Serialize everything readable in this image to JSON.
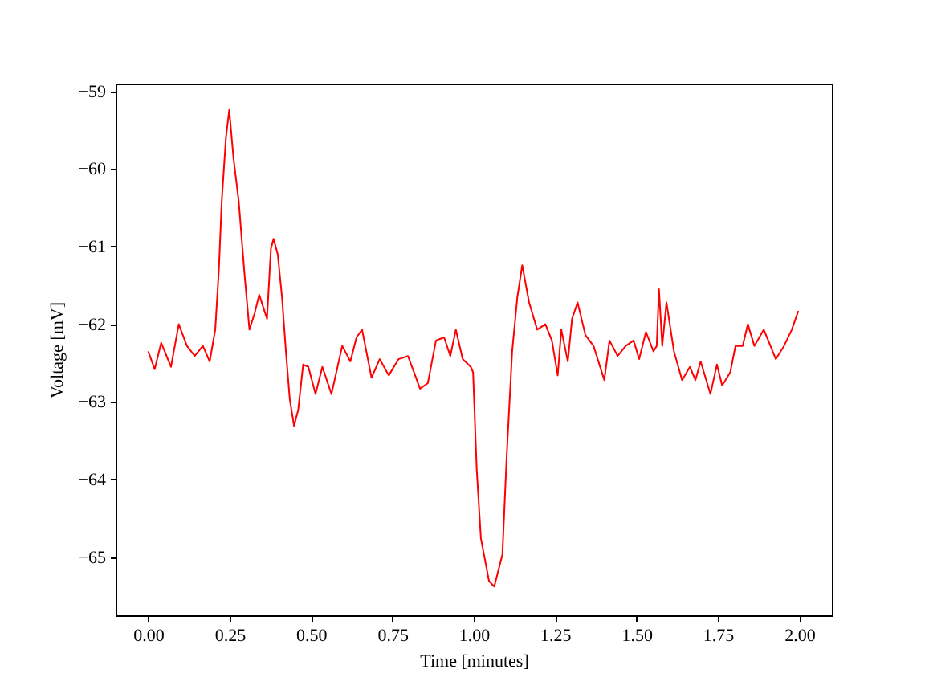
{
  "chart_data": {
    "type": "line",
    "xlabel": "Time [minutes]",
    "ylabel": "Voltage [mV]",
    "xlim": [
      -0.1,
      2.1
    ],
    "ylim": [
      -65.75,
      -58.9
    ],
    "xticks": [
      {
        "value": 0,
        "label": "0.00"
      },
      {
        "value": 0.25,
        "label": "0.25"
      },
      {
        "value": 0.5,
        "label": "0.50"
      },
      {
        "value": 0.75,
        "label": "0.75"
      },
      {
        "value": 1,
        "label": "1.00"
      },
      {
        "value": 1.25,
        "label": "1.25"
      },
      {
        "value": 1.5,
        "label": "1.50"
      },
      {
        "value": 1.75,
        "label": "1.75"
      },
      {
        "value": 2,
        "label": "2.00"
      }
    ],
    "yticks": [
      {
        "value": -65,
        "label": "−65"
      },
      {
        "value": -64,
        "label": "−64"
      },
      {
        "value": -63,
        "label": "−63"
      },
      {
        "value": -62,
        "label": "−62"
      },
      {
        "value": -61,
        "label": "−61"
      },
      {
        "value": -60,
        "label": "−60"
      },
      {
        "value": -59,
        "label": "−59"
      }
    ],
    "grid": false,
    "marker": "none",
    "line_style": "solid",
    "series": [
      {
        "color": "#ff0000",
        "x": [
          0.0,
          0.02,
          0.04,
          0.07,
          0.094,
          0.119,
          0.143,
          0.168,
          0.189,
          0.206,
          0.217,
          0.226,
          0.239,
          0.249,
          0.262,
          0.278,
          0.295,
          0.311,
          0.327,
          0.341,
          0.365,
          0.377,
          0.385,
          0.398,
          0.411,
          0.423,
          0.435,
          0.448,
          0.461,
          0.476,
          0.492,
          0.514,
          0.535,
          0.563,
          0.596,
          0.621,
          0.64,
          0.657,
          0.686,
          0.711,
          0.739,
          0.769,
          0.798,
          0.835,
          0.859,
          0.884,
          0.909,
          0.928,
          0.945,
          0.966,
          0.991,
          0.998,
          1.009,
          1.022,
          1.047,
          1.063,
          1.088,
          1.101,
          1.118,
          1.134,
          1.149,
          1.17,
          1.195,
          1.22,
          1.24,
          1.258,
          1.269,
          1.289,
          1.302,
          1.319,
          1.343,
          1.368,
          1.401,
          1.417,
          1.442,
          1.467,
          1.491,
          1.508,
          1.529,
          1.552,
          1.562,
          1.569,
          1.579,
          1.592,
          1.615,
          1.64,
          1.664,
          1.681,
          1.697,
          1.727,
          1.747,
          1.763,
          1.788,
          1.804,
          1.826,
          1.842,
          1.862,
          1.891,
          1.928,
          1.953,
          1.977,
          1.997
        ],
        "values": [
          -62.35,
          -62.58,
          -62.24,
          -62.55,
          -62.0,
          -62.28,
          -62.41,
          -62.28,
          -62.48,
          -62.07,
          -61.31,
          -60.41,
          -59.59,
          -59.24,
          -59.86,
          -60.41,
          -61.31,
          -62.07,
          -61.86,
          -61.62,
          -61.93,
          -61.03,
          -60.9,
          -61.1,
          -61.65,
          -62.35,
          -62.97,
          -63.31,
          -63.1,
          -62.52,
          -62.55,
          -62.9,
          -62.55,
          -62.9,
          -62.28,
          -62.48,
          -62.17,
          -62.07,
          -62.69,
          -62.45,
          -62.66,
          -62.45,
          -62.41,
          -62.83,
          -62.76,
          -62.21,
          -62.17,
          -62.41,
          -62.07,
          -62.45,
          -62.55,
          -62.62,
          -63.86,
          -64.76,
          -65.31,
          -65.38,
          -64.97,
          -63.72,
          -62.35,
          -61.65,
          -61.24,
          -61.72,
          -62.07,
          -62.0,
          -62.21,
          -62.66,
          -62.07,
          -62.48,
          -61.93,
          -61.72,
          -62.14,
          -62.28,
          -62.72,
          -62.21,
          -62.41,
          -62.28,
          -62.21,
          -62.45,
          -62.1,
          -62.35,
          -62.28,
          -61.55,
          -62.28,
          -61.72,
          -62.35,
          -62.72,
          -62.55,
          -62.72,
          -62.48,
          -62.9,
          -62.52,
          -62.79,
          -62.62,
          -62.28,
          -62.28,
          -62.0,
          -62.28,
          -62.07,
          -62.45,
          -62.28,
          -62.07,
          -61.83
        ]
      }
    ]
  }
}
